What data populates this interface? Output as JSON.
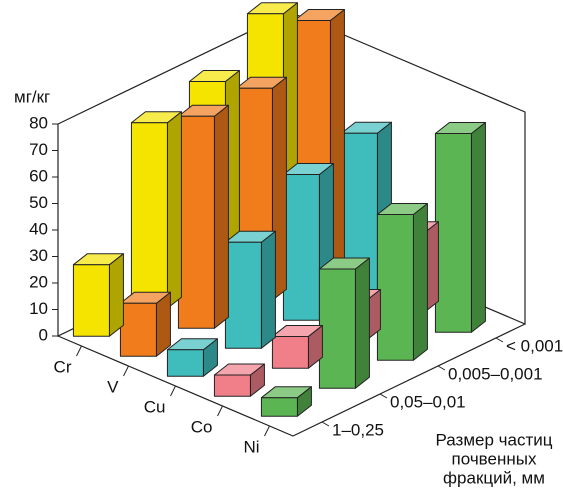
{
  "chart_data": {
    "type": "bar3d",
    "y_label": "мг/кг",
    "x_label": [
      "Размер частиц",
      "почвенных",
      "фракций, мм"
    ],
    "categories": [
      "1–0,25",
      "0,05–0,01",
      "0,005–0,001",
      "< 0,001"
    ],
    "series": [
      {
        "name": "Cr",
        "color": "#f5e400",
        "values": [
          27,
          70,
          75,
          90
        ]
      },
      {
        "name": "V",
        "color": "#f07c1c",
        "values": [
          20,
          80,
          80,
          95
        ]
      },
      {
        "name": "Cu",
        "color": "#3fbdbd",
        "values": [
          10,
          40,
          55,
          60
        ]
      },
      {
        "name": "Co",
        "color": "#f07f8a",
        "values": [
          8,
          12,
          15,
          30
        ]
      },
      {
        "name": "Ni",
        "color": "#5ab552",
        "values": [
          7,
          45,
          55,
          75
        ]
      }
    ],
    "ylim": [
      0,
      80
    ],
    "yticks": [
      0,
      10,
      20,
      30,
      40,
      50,
      60,
      70,
      80
    ]
  }
}
